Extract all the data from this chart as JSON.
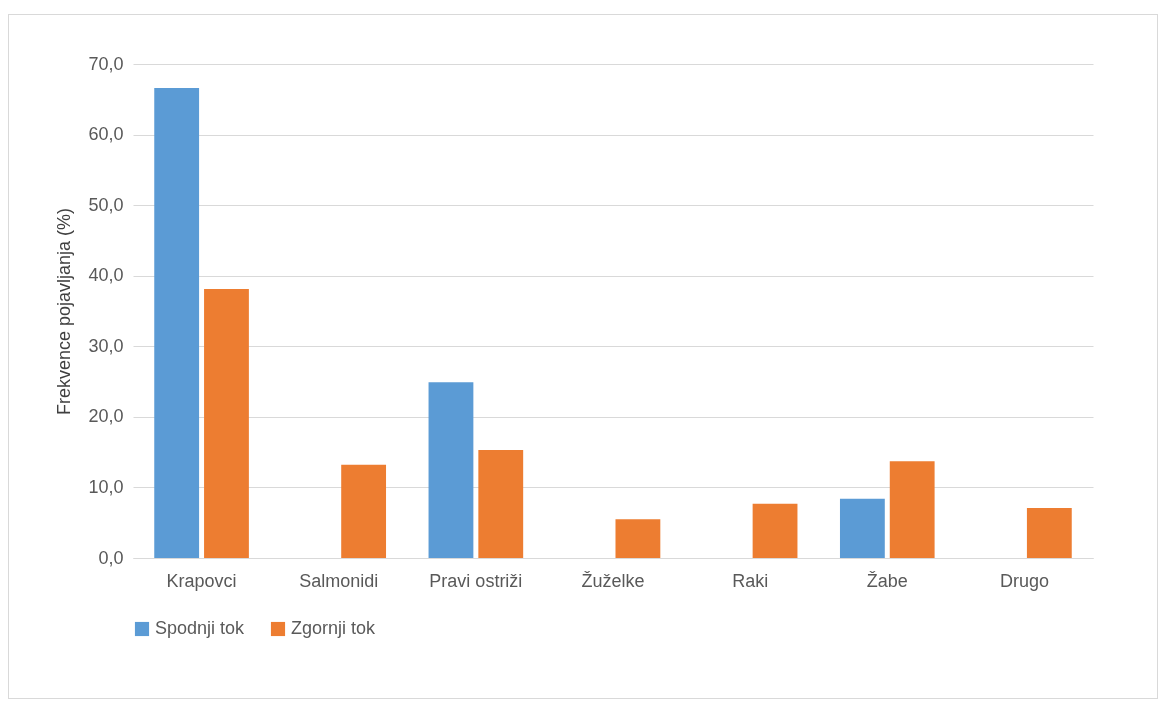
{
  "chart_data": {
    "type": "bar",
    "ylabel": "Frekvence pojavljanja (%)",
    "categories": [
      "Krapovci",
      "Salmonidi",
      "Pravi ostriži",
      "Žuželke",
      "Raki",
      "Žabe",
      "Drugo"
    ],
    "series": [
      {
        "name": "Spodnji tok",
        "color": "#5b9bd5",
        "values": [
          66.6,
          0,
          24.9,
          0,
          0,
          8.4,
          0
        ]
      },
      {
        "name": "Zgornji tok",
        "color": "#ed7d31",
        "values": [
          38.1,
          13.2,
          15.3,
          5.5,
          7.7,
          13.7,
          7.1
        ]
      }
    ],
    "ylim": [
      0,
      70
    ],
    "yticks": [
      {
        "value": 0,
        "label": "0,0"
      },
      {
        "value": 10,
        "label": "10,0"
      },
      {
        "value": 20,
        "label": "20,0"
      },
      {
        "value": 30,
        "label": "30,0"
      },
      {
        "value": 40,
        "label": "40,0"
      },
      {
        "value": 50,
        "label": "50,0"
      },
      {
        "value": 60,
        "label": "60,0"
      },
      {
        "value": 70,
        "label": "70,0"
      }
    ],
    "grid": "y",
    "legend": "bottom"
  }
}
